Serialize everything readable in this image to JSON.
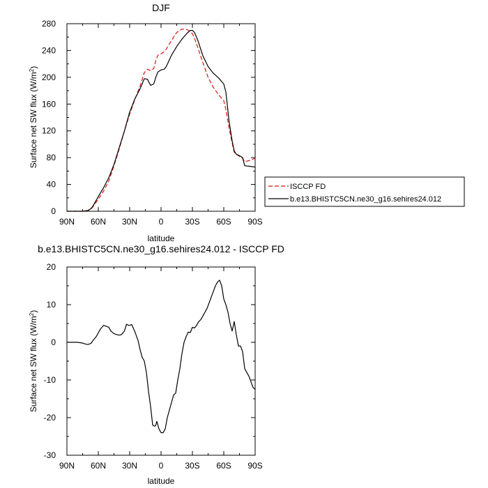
{
  "chart_data": [
    {
      "type": "line",
      "title": "DJF",
      "xlabel": "latitude",
      "ylabel": "Surface net SW flux (W/m²)",
      "xlim": [
        90,
        -90
      ],
      "ylim": [
        0,
        280
      ],
      "x_ticks": [
        90,
        60,
        30,
        0,
        -30,
        -60,
        -90
      ],
      "x_tick_labels": [
        "90N",
        "60N",
        "30N",
        "0",
        "30S",
        "60S",
        "90S"
      ],
      "y_ticks": [
        0,
        40,
        80,
        120,
        160,
        200,
        240,
        280
      ],
      "y_tick_labels": [
        "0",
        "40",
        "80",
        "120",
        "160",
        "200",
        "240",
        "280"
      ],
      "grid": false,
      "legend": "right",
      "series": [
        {
          "name": "ISCCP FD",
          "color": "#e01010",
          "dash": "dashed",
          "x": [
            90,
            80,
            75,
            70,
            67,
            65,
            60,
            55,
            50,
            45,
            40,
            35,
            30,
            25,
            20,
            16,
            13,
            10,
            7,
            5,
            3,
            0,
            -3,
            -5,
            -10,
            -15,
            -20,
            -25,
            -28,
            -30,
            -32,
            -35,
            -40,
            -45,
            -50,
            -55,
            -60,
            -62,
            -65,
            -68,
            -70,
            -72,
            -75,
            -78,
            -80,
            -85,
            -90
          ],
          "y": [
            0,
            0,
            0,
            1,
            3,
            7,
            18,
            30,
            45,
            68,
            93,
            120,
            145,
            167,
            187,
            207,
            212,
            210,
            213,
            225,
            233,
            235,
            238,
            242,
            255,
            267,
            272,
            271,
            268,
            265,
            258,
            245,
            222,
            200,
            185,
            174,
            165,
            152,
            125,
            102,
            88,
            85,
            82,
            79,
            74,
            76,
            79
          ]
        },
        {
          "name": "b.e13.BHISTC5CN.ne30_g16.sehires24.012",
          "color": "#000000",
          "dash": "solid",
          "x": [
            90,
            80,
            75,
            70,
            67,
            65,
            60,
            55,
            50,
            45,
            40,
            35,
            30,
            25,
            20,
            16,
            13,
            10,
            7,
            5,
            3,
            0,
            -3,
            -5,
            -10,
            -15,
            -20,
            -25,
            -28,
            -30,
            -32,
            -35,
            -40,
            -45,
            -50,
            -55,
            -60,
            -62,
            -65,
            -68,
            -70,
            -72,
            -75,
            -78,
            -80,
            -85,
            -90
          ],
          "y": [
            0,
            0,
            0,
            1,
            4,
            8,
            22,
            35,
            50,
            70,
            95,
            120,
            148,
            168,
            183,
            198,
            197,
            188,
            190,
            200,
            208,
            211,
            212,
            216,
            233,
            246,
            257,
            266,
            270,
            270,
            267,
            256,
            232,
            216,
            206,
            199,
            190,
            178,
            135,
            105,
            90,
            85,
            83,
            80,
            68,
            67,
            66
          ]
        }
      ]
    },
    {
      "type": "line",
      "title": "b.e13.BHISTC5CN.ne30_g16.sehires24.012 - ISCCP FD",
      "xlabel": "latitude",
      "ylabel": "Surface net SW flux (W/m²)",
      "xlim": [
        90,
        -90
      ],
      "ylim": [
        -30,
        20
      ],
      "x_ticks": [
        90,
        60,
        30,
        0,
        -30,
        -60,
        -90
      ],
      "x_tick_labels": [
        "90N",
        "60N",
        "30N",
        "0",
        "30S",
        "60S",
        "90S"
      ],
      "y_ticks": [
        -30,
        -20,
        -10,
        0,
        10,
        20
      ],
      "y_tick_labels": [
        "-30",
        "-20",
        "-10",
        "0",
        "10",
        "20"
      ],
      "grid": false,
      "series": [
        {
          "color": "#000000",
          "dash": "solid",
          "x": [
            90,
            80,
            75,
            72,
            70,
            67,
            65,
            62,
            60,
            58,
            55,
            52,
            50,
            48,
            45,
            42,
            40,
            38,
            35,
            33,
            31,
            30,
            28,
            25,
            22,
            20,
            18,
            16,
            14,
            12,
            10,
            8,
            6,
            5,
            4,
            2,
            0,
            -2,
            -4,
            -6,
            -8,
            -10,
            -12,
            -14,
            -16,
            -18,
            -20,
            -22,
            -24,
            -26,
            -28,
            -30,
            -32,
            -34,
            -36,
            -38,
            -40,
            -42,
            -44,
            -46,
            -48,
            -50,
            -52,
            -54,
            -56,
            -58,
            -60,
            -62,
            -64,
            -66,
            -68,
            -70,
            -72,
            -74,
            -76,
            -78,
            -80,
            -82,
            -84,
            -86,
            -88,
            -90
          ],
          "y": [
            0,
            0,
            -0.2,
            -0.5,
            -0.6,
            -0.3,
            0.5,
            1.5,
            2.5,
            3.5,
            4.5,
            4.2,
            4.0,
            3.0,
            2.3,
            2.0,
            1.9,
            2.0,
            3.0,
            4.8,
            4.5,
            4.5,
            4.7,
            2.8,
            0.5,
            -2.0,
            -4.0,
            -5.0,
            -8.0,
            -13.0,
            -17.0,
            -22.0,
            -22.3,
            -22.0,
            -21.0,
            -23.0,
            -24.0,
            -24.0,
            -23.0,
            -20.0,
            -18.0,
            -16.0,
            -14.0,
            -13.5,
            -10.0,
            -7.0,
            -3.0,
            0.0,
            1.5,
            2.7,
            2.6,
            4.0,
            3.8,
            4.5,
            5.5,
            6.0,
            7.0,
            8.0,
            9.0,
            10.5,
            12.0,
            13.5,
            15.0,
            16.0,
            16.5,
            15.0,
            11.5,
            10.0,
            8.0,
            5.0,
            3.0,
            5.5,
            2.0,
            -1.0,
            -1.0,
            -2.5,
            -7.0,
            -8.0,
            -9.0,
            -10.5,
            -12.0,
            -12.5
          ]
        }
      ]
    }
  ]
}
